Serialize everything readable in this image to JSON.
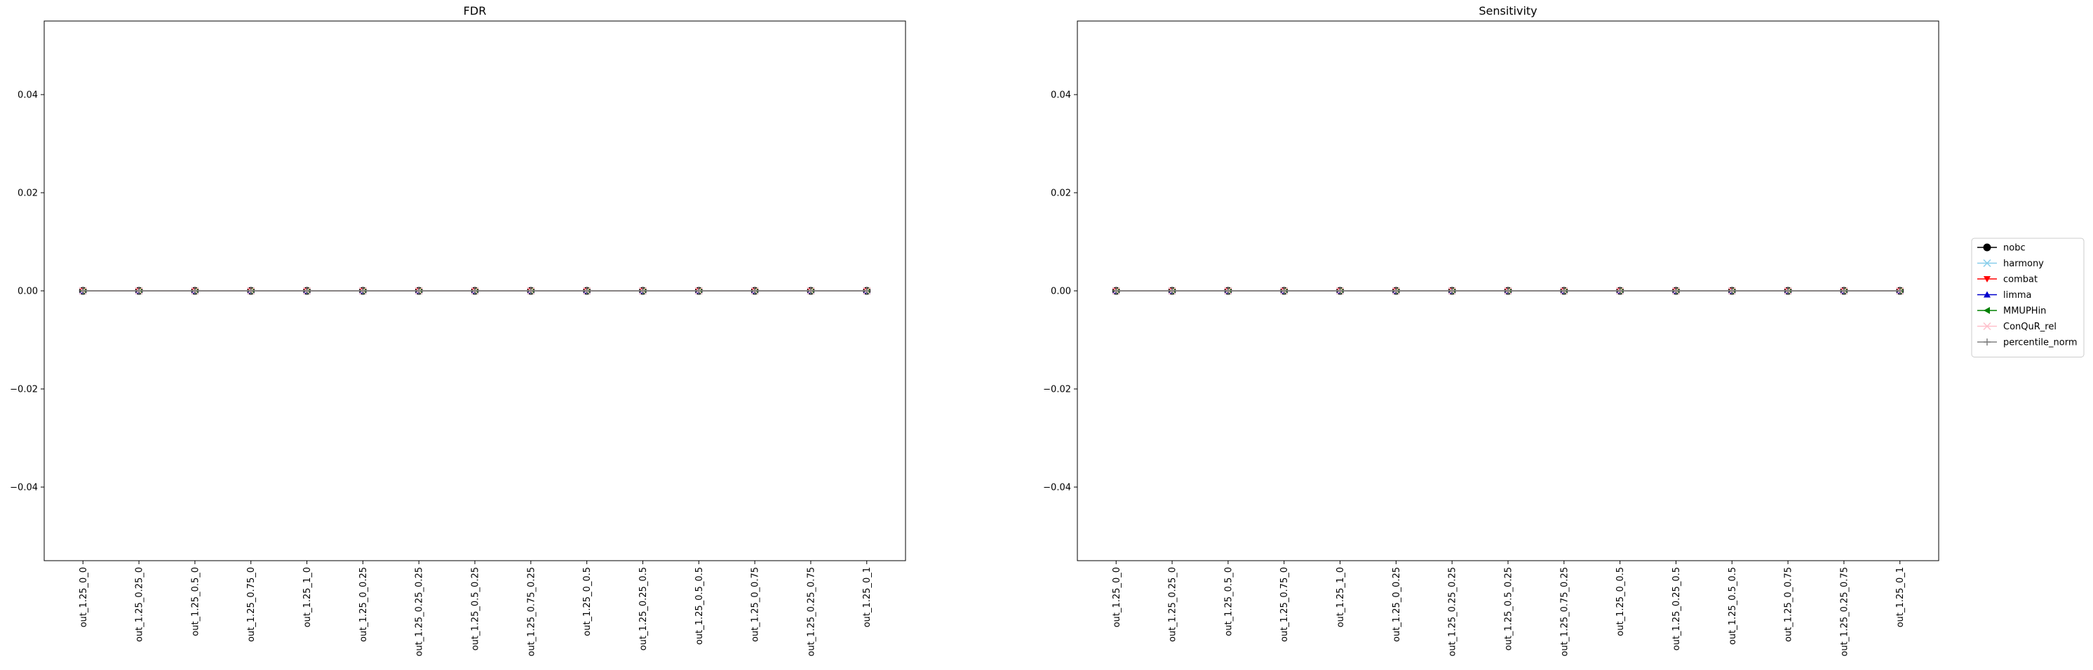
{
  "chart_data": [
    {
      "type": "line",
      "title": "FDR",
      "xlabel": "",
      "ylabel": "",
      "ylim": [
        -0.055,
        0.055
      ],
      "yticks": [
        -0.04,
        -0.02,
        0.0,
        0.02,
        0.04
      ],
      "ytick_labels": [
        "−0.04",
        "−0.02",
        "0.00",
        "0.02",
        "0.04"
      ],
      "categories": [
        "out_1.25_0_0",
        "out_1.25_0.25_0",
        "out_1.25_0.5_0",
        "out_1.25_0.75_0",
        "out_1.25_1_0",
        "out_1.25_0_0.25",
        "out_1.25_0.25_0.25",
        "out_1.25_0.5_0.25",
        "out_1.25_0.75_0.25",
        "out_1.25_0_0.5",
        "out_1.25_0.25_0.5",
        "out_1.25_0.5_0.5",
        "out_1.25_0_0.75",
        "out_1.25_0.25_0.75",
        "out_1.25_0_1"
      ],
      "series": [
        {
          "name": "nobc",
          "values": [
            0,
            0,
            0,
            0,
            0,
            0,
            0,
            0,
            0,
            0,
            0,
            0,
            0,
            0,
            0
          ]
        },
        {
          "name": "harmony",
          "values": [
            0,
            0,
            0,
            0,
            0,
            0,
            0,
            0,
            0,
            0,
            0,
            0,
            0,
            0,
            0
          ]
        },
        {
          "name": "combat",
          "values": [
            0,
            0,
            0,
            0,
            0,
            0,
            0,
            0,
            0,
            0,
            0,
            0,
            0,
            0,
            0
          ]
        },
        {
          "name": "limma",
          "values": [
            0,
            0,
            0,
            0,
            0,
            0,
            0,
            0,
            0,
            0,
            0,
            0,
            0,
            0,
            0
          ]
        },
        {
          "name": "MMUPHin",
          "values": [
            0,
            0,
            0,
            0,
            0,
            0,
            0,
            0,
            0,
            0,
            0,
            0,
            0,
            0,
            0
          ]
        },
        {
          "name": "ConQuR_rel",
          "values": [
            0,
            0,
            0,
            0,
            0,
            0,
            0,
            0,
            0,
            0,
            0,
            0,
            0,
            0,
            0
          ]
        },
        {
          "name": "percentile_norm",
          "values": [
            0,
            0,
            0,
            0,
            0,
            0,
            0,
            0,
            0,
            0,
            0,
            0,
            0,
            0,
            0
          ]
        }
      ]
    },
    {
      "type": "line",
      "title": "Sensitivity",
      "xlabel": "",
      "ylabel": "",
      "ylim": [
        -0.055,
        0.055
      ],
      "yticks": [
        -0.04,
        -0.02,
        0.0,
        0.02,
        0.04
      ],
      "ytick_labels": [
        "−0.04",
        "−0.02",
        "0.00",
        "0.02",
        "0.04"
      ],
      "categories": [
        "out_1.25_0_0",
        "out_1.25_0.25_0",
        "out_1.25_0.5_0",
        "out_1.25_0.75_0",
        "out_1.25_1_0",
        "out_1.25_0_0.25",
        "out_1.25_0.25_0.25",
        "out_1.25_0.5_0.25",
        "out_1.25_0.75_0.25",
        "out_1.25_0_0.5",
        "out_1.25_0.25_0.5",
        "out_1.25_0.5_0.5",
        "out_1.25_0_0.75",
        "out_1.25_0.25_0.75",
        "out_1.25_0_1"
      ],
      "series": [
        {
          "name": "nobc",
          "values": [
            0,
            0,
            0,
            0,
            0,
            0,
            0,
            0,
            0,
            0,
            0,
            0,
            0,
            0,
            0
          ]
        },
        {
          "name": "harmony",
          "values": [
            0,
            0,
            0,
            0,
            0,
            0,
            0,
            0,
            0,
            0,
            0,
            0,
            0,
            0,
            0
          ]
        },
        {
          "name": "combat",
          "values": [
            0,
            0,
            0,
            0,
            0,
            0,
            0,
            0,
            0,
            0,
            0,
            0,
            0,
            0,
            0
          ]
        },
        {
          "name": "limma",
          "values": [
            0,
            0,
            0,
            0,
            0,
            0,
            0,
            0,
            0,
            0,
            0,
            0,
            0,
            0,
            0
          ]
        },
        {
          "name": "MMUPHin",
          "values": [
            0,
            0,
            0,
            0,
            0,
            0,
            0,
            0,
            0,
            0,
            0,
            0,
            0,
            0,
            0
          ]
        },
        {
          "name": "ConQuR_rel",
          "values": [
            0,
            0,
            0,
            0,
            0,
            0,
            0,
            0,
            0,
            0,
            0,
            0,
            0,
            0,
            0
          ]
        },
        {
          "name": "percentile_norm",
          "values": [
            0,
            0,
            0,
            0,
            0,
            0,
            0,
            0,
            0,
            0,
            0,
            0,
            0,
            0,
            0
          ]
        }
      ]
    }
  ],
  "legend": {
    "placement": "right",
    "entries": [
      {
        "label": "nobc",
        "color": "#000000",
        "marker": "circle"
      },
      {
        "label": "harmony",
        "color": "#87ceeb",
        "marker": "x"
      },
      {
        "label": "combat",
        "color": "#ff0000",
        "marker": "triangle-down"
      },
      {
        "label": "limma",
        "color": "#0000cd",
        "marker": "triangle-up"
      },
      {
        "label": "MMUPHin",
        "color": "#008000",
        "marker": "triangle-left"
      },
      {
        "label": "ConQuR_rel",
        "color": "#ffc0cb",
        "marker": "x"
      },
      {
        "label": "percentile_norm",
        "color": "#808080",
        "marker": "plus"
      }
    ]
  }
}
